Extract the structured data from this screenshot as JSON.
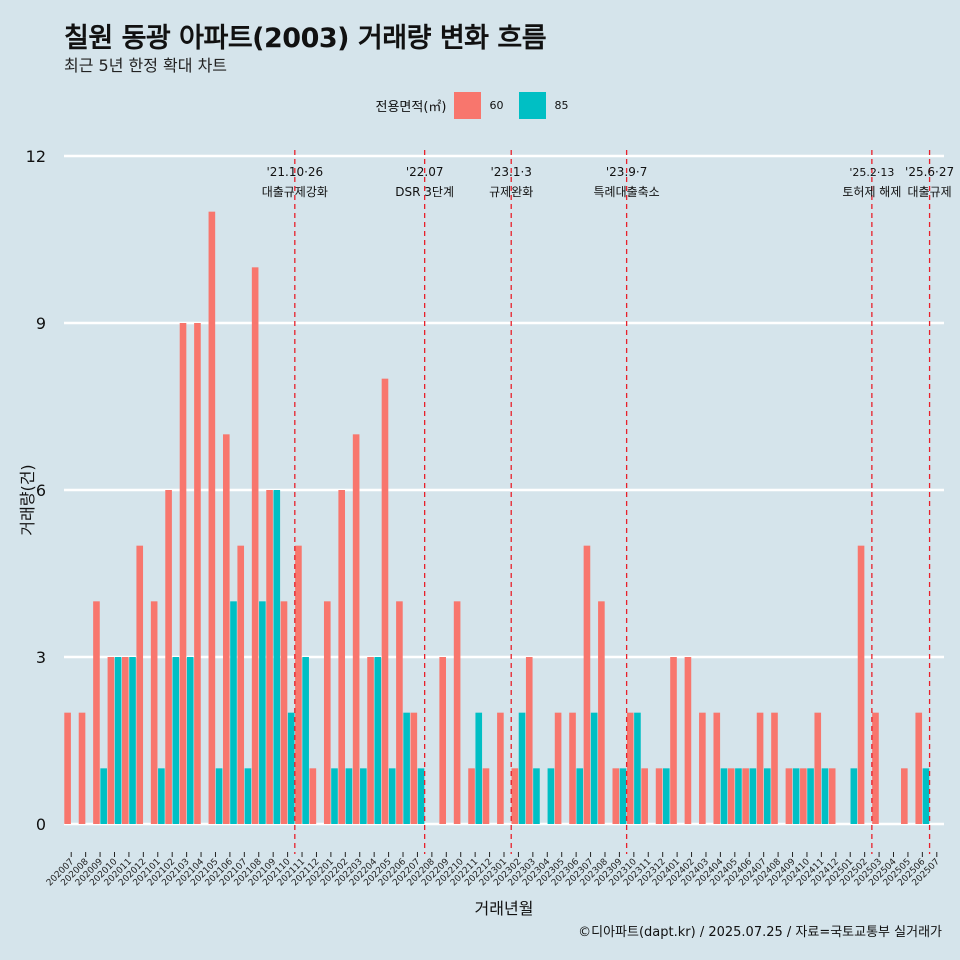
{
  "header": {
    "title": "칠원 동광 아파트(2003) 거래량 변화 흐름",
    "subtitle": "최근 5년 한정 확대 차트"
  },
  "legend": {
    "title": "전용면적(㎡)",
    "items": [
      {
        "label": "60",
        "color": "#f8766d"
      },
      {
        "label": "85",
        "color": "#00bfc4"
      }
    ]
  },
  "footer": {
    "source": "©디아파트(dapt.kr) / 2025.07.25 / 자료=국토교통부 실거래가"
  },
  "chart_data": {
    "type": "bar",
    "title": "칠원 동광 아파트(2003) 거래량 변화 흐름",
    "xlabel": "거래년월",
    "ylabel": "거래량(건)",
    "ylim": [
      0,
      12
    ],
    "yticks": [
      0,
      3,
      6,
      9,
      12
    ],
    "categories": [
      "202007",
      "202008",
      "202009",
      "202010",
      "202011",
      "202012",
      "202101",
      "202102",
      "202103",
      "202104",
      "202105",
      "202106",
      "202107",
      "202108",
      "202109",
      "202110",
      "202111",
      "202112",
      "202201",
      "202202",
      "202203",
      "202204",
      "202205",
      "202206",
      "202207",
      "202208",
      "202209",
      "202210",
      "202211",
      "202212",
      "202301",
      "202302",
      "202303",
      "202304",
      "202305",
      "202306",
      "202307",
      "202308",
      "202309",
      "202310",
      "202311",
      "202312",
      "202401",
      "202402",
      "202403",
      "202404",
      "202405",
      "202406",
      "202407",
      "202408",
      "202409",
      "202410",
      "202411",
      "202412",
      "202501",
      "202502",
      "202503",
      "202504",
      "202505",
      "202506",
      "202507"
    ],
    "series": [
      {
        "name": "60",
        "color": "#f8766d",
        "values": [
          2,
          2,
          4,
          3,
          3,
          5,
          4,
          6,
          9,
          9,
          11,
          7,
          5,
          10,
          6,
          4,
          5,
          1,
          4,
          6,
          7,
          3,
          8,
          4,
          2,
          0,
          3,
          4,
          1,
          1,
          2,
          1,
          3,
          0,
          2,
          2,
          5,
          4,
          1,
          2,
          1,
          1,
          3,
          3,
          2,
          2,
          1,
          1,
          2,
          2,
          1,
          1,
          2,
          1,
          0,
          5,
          2,
          0,
          1,
          2,
          0
        ]
      },
      {
        "name": "85",
        "color": "#00bfc4",
        "values": [
          0,
          0,
          1,
          3,
          3,
          0,
          1,
          3,
          3,
          0,
          1,
          4,
          1,
          4,
          6,
          2,
          3,
          0,
          1,
          1,
          1,
          3,
          1,
          2,
          1,
          0,
          0,
          0,
          2,
          0,
          0,
          2,
          1,
          1,
          0,
          1,
          2,
          0,
          1,
          2,
          0,
          1,
          0,
          0,
          0,
          1,
          1,
          1,
          1,
          0,
          1,
          1,
          1,
          0,
          1,
          0,
          0,
          0,
          0,
          1,
          0
        ]
      }
    ],
    "events": [
      {
        "after": "202110",
        "date": "'21.10·26",
        "label": "대출규제강화"
      },
      {
        "after": "202207",
        "date": "'22.07",
        "label": "DSR 3단계"
      },
      {
        "after": "202301",
        "date": "'23.1·3",
        "label": "규제완화"
      },
      {
        "after": "202309",
        "date": "'23.9·7",
        "label": "특례대출축소"
      },
      {
        "after": "202502",
        "date": "'25.2·13",
        "label": "토허제 해제"
      },
      {
        "after": "202506",
        "date": "'25.6·27",
        "label": "대출규제"
      }
    ]
  }
}
